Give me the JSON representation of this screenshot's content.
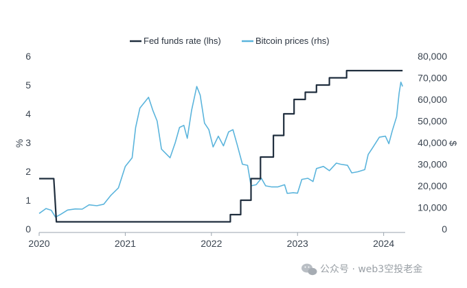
{
  "chart_data": {
    "type": "line",
    "title": "",
    "legend": {
      "placement": "top-center",
      "entries": [
        "Fed funds rate (lhs)",
        "Bitcoin prices (rhs)"
      ]
    },
    "ylabel_left": "%",
    "ylabel_right": "$",
    "xlim": [
      2020.0,
      2024.25
    ],
    "ylim_left": [
      0,
      6
    ],
    "ylim_right": [
      0,
      80000
    ],
    "x_ticks": [
      2020,
      2021,
      2022,
      2023,
      2024
    ],
    "x_tick_labels": [
      "2020",
      "2021",
      "2022",
      "2023",
      "2024"
    ],
    "y_left_ticks": [
      0,
      1,
      2,
      3,
      4,
      5,
      6
    ],
    "y_left_tick_labels": [
      "0",
      "1",
      "2",
      "3",
      "4",
      "5",
      "6"
    ],
    "y_right_ticks": [
      0,
      10000,
      20000,
      30000,
      40000,
      50000,
      60000,
      70000,
      80000
    ],
    "y_right_tick_labels": [
      "0",
      "10,000",
      "20,000",
      "30,000",
      "40,000",
      "50,000",
      "60,000",
      "70,000",
      "80,000"
    ],
    "series": [
      {
        "name": "Fed funds rate (lhs)",
        "axis": "left",
        "color": "#1f2d3d",
        "step": true,
        "points": [
          [
            2020.0,
            1.75
          ],
          [
            2020.17,
            1.75
          ],
          [
            2020.18,
            1.25
          ],
          [
            2020.2,
            0.25
          ],
          [
            2022.22,
            0.25
          ],
          [
            2022.22,
            0.5
          ],
          [
            2022.34,
            0.5
          ],
          [
            2022.34,
            1.0
          ],
          [
            2022.46,
            1.0
          ],
          [
            2022.46,
            1.75
          ],
          [
            2022.57,
            1.75
          ],
          [
            2022.57,
            2.5
          ],
          [
            2022.72,
            2.5
          ],
          [
            2022.72,
            3.25
          ],
          [
            2022.84,
            3.25
          ],
          [
            2022.84,
            4.0
          ],
          [
            2022.96,
            4.0
          ],
          [
            2022.96,
            4.5
          ],
          [
            2023.09,
            4.5
          ],
          [
            2023.09,
            4.75
          ],
          [
            2023.22,
            4.75
          ],
          [
            2023.22,
            5.0
          ],
          [
            2023.37,
            5.0
          ],
          [
            2023.37,
            5.25
          ],
          [
            2023.57,
            5.25
          ],
          [
            2023.57,
            5.5
          ],
          [
            2024.22,
            5.5
          ]
        ]
      },
      {
        "name": "Bitcoin prices (rhs)",
        "axis": "right",
        "color": "#5ab4dc",
        "step": false,
        "points": [
          [
            2020.0,
            7200
          ],
          [
            2020.08,
            9500
          ],
          [
            2020.14,
            8700
          ],
          [
            2020.19,
            5500
          ],
          [
            2020.25,
            6800
          ],
          [
            2020.33,
            8800
          ],
          [
            2020.42,
            9300
          ],
          [
            2020.5,
            9200
          ],
          [
            2020.58,
            11200
          ],
          [
            2020.67,
            10800
          ],
          [
            2020.75,
            11500
          ],
          [
            2020.83,
            15500
          ],
          [
            2020.92,
            19000
          ],
          [
            2021.0,
            29000
          ],
          [
            2021.08,
            33000
          ],
          [
            2021.12,
            47000
          ],
          [
            2021.17,
            56000
          ],
          [
            2021.22,
            58500
          ],
          [
            2021.27,
            61000
          ],
          [
            2021.32,
            55000
          ],
          [
            2021.37,
            50000
          ],
          [
            2021.42,
            37000
          ],
          [
            2021.47,
            35000
          ],
          [
            2021.52,
            33000
          ],
          [
            2021.58,
            40000
          ],
          [
            2021.63,
            47000
          ],
          [
            2021.68,
            48000
          ],
          [
            2021.72,
            42000
          ],
          [
            2021.77,
            55000
          ],
          [
            2021.83,
            66000
          ],
          [
            2021.87,
            62000
          ],
          [
            2021.92,
            49000
          ],
          [
            2021.97,
            46000
          ],
          [
            2022.02,
            38000
          ],
          [
            2022.08,
            43000
          ],
          [
            2022.14,
            38500
          ],
          [
            2022.2,
            45000
          ],
          [
            2022.25,
            46000
          ],
          [
            2022.3,
            39000
          ],
          [
            2022.36,
            30000
          ],
          [
            2022.42,
            29500
          ],
          [
            2022.46,
            20000
          ],
          [
            2022.52,
            20500
          ],
          [
            2022.58,
            23500
          ],
          [
            2022.63,
            20000
          ],
          [
            2022.7,
            19500
          ],
          [
            2022.77,
            19500
          ],
          [
            2022.85,
            20500
          ],
          [
            2022.88,
            16500
          ],
          [
            2022.95,
            16800
          ],
          [
            2023.0,
            16600
          ],
          [
            2023.05,
            23000
          ],
          [
            2023.12,
            23500
          ],
          [
            2023.18,
            22000
          ],
          [
            2023.22,
            28000
          ],
          [
            2023.3,
            29000
          ],
          [
            2023.37,
            27000
          ],
          [
            2023.45,
            30500
          ],
          [
            2023.5,
            30000
          ],
          [
            2023.58,
            29500
          ],
          [
            2023.63,
            26000
          ],
          [
            2023.7,
            26500
          ],
          [
            2023.78,
            27500
          ],
          [
            2023.82,
            34500
          ],
          [
            2023.87,
            37500
          ],
          [
            2023.95,
            42500
          ],
          [
            2024.02,
            43000
          ],
          [
            2024.06,
            39500
          ],
          [
            2024.1,
            45500
          ],
          [
            2024.15,
            52000
          ],
          [
            2024.18,
            63000
          ],
          [
            2024.2,
            68000
          ],
          [
            2024.22,
            66000
          ]
        ]
      }
    ]
  },
  "watermark": {
    "text": "公众号 · web3空投老金",
    "icon": "wechat-icon"
  }
}
